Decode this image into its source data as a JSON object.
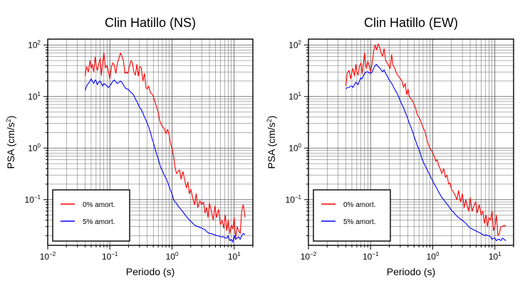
{
  "colors": {
    "undamped": "#ff0000",
    "damped": "#0000ff",
    "axis": "#000000",
    "grid": "#555555"
  },
  "chart_data": [
    {
      "type": "line",
      "title": "Clin Hatillo (NS)",
      "xlabel": "Periodo (s)",
      "ylabel_main": "PSA (cm/s",
      "ylabel_sup": "2",
      "ylabel_tail": ")",
      "x_scale": "log",
      "y_scale": "log",
      "xlim": [
        0.01,
        20
      ],
      "ylim": [
        0.013,
        130
      ],
      "grid": true,
      "legend_position": "bottom-left",
      "x_ticks": [
        {
          "value": 0.01,
          "base": "10",
          "exp": "−2"
        },
        {
          "value": 0.1,
          "base": "10",
          "exp": "−1"
        },
        {
          "value": 1,
          "base": "10",
          "exp": "0"
        },
        {
          "value": 10,
          "base": "10",
          "exp": "1"
        }
      ],
      "y_ticks": [
        {
          "value": 0.1,
          "base": "10",
          "exp": "−1"
        },
        {
          "value": 1,
          "base": "10",
          "exp": "0"
        },
        {
          "value": 10,
          "base": "10",
          "exp": "1"
        },
        {
          "value": 100,
          "base": "10",
          "exp": "2"
        }
      ],
      "series": [
        {
          "name": "0% amort.",
          "color": "#ff0000",
          "x": [
            0.04,
            0.042,
            0.045,
            0.048,
            0.05,
            0.052,
            0.055,
            0.058,
            0.06,
            0.063,
            0.066,
            0.07,
            0.073,
            0.076,
            0.08,
            0.085,
            0.09,
            0.095,
            0.1,
            0.106,
            0.112,
            0.118,
            0.125,
            0.132,
            0.14,
            0.148,
            0.156,
            0.165,
            0.175,
            0.185,
            0.195,
            0.206,
            0.218,
            0.23,
            0.243,
            0.257,
            0.272,
            0.287,
            0.303,
            0.32,
            0.34,
            0.36,
            0.38,
            0.4,
            0.42,
            0.45,
            0.48,
            0.5,
            0.53,
            0.56,
            0.6,
            0.63,
            0.66,
            0.7,
            0.75,
            0.8,
            0.85,
            0.9,
            0.95,
            1.0,
            1.06,
            1.12,
            1.18,
            1.25,
            1.32,
            1.4,
            1.5,
            1.6,
            1.7,
            1.8,
            1.9,
            2.0,
            2.15,
            2.3,
            2.45,
            2.6,
            2.8,
            3.0,
            3.2,
            3.4,
            3.6,
            3.8,
            4.0,
            4.3,
            4.6,
            4.9,
            5.2,
            5.6,
            6.0,
            6.4,
            6.8,
            7.2,
            7.6,
            8.0,
            8.5,
            9.0,
            9.5,
            10.0,
            10.6,
            11.2,
            11.8,
            12.5,
            13.2,
            14.0,
            15.0
          ],
          "y": [
            25,
            38,
            30,
            50,
            35,
            42,
            30,
            58,
            40,
            32,
            42,
            55,
            26,
            40,
            70,
            36,
            40,
            30,
            22,
            38,
            45,
            40,
            28,
            45,
            55,
            70,
            60,
            50,
            28,
            30,
            28,
            38,
            50,
            45,
            30,
            26,
            42,
            25,
            38,
            36,
            20,
            28,
            15,
            14,
            16,
            12,
            11,
            10,
            8,
            6.5,
            5,
            3.5,
            3.0,
            2.6,
            2.4,
            1.9,
            2.3,
            1.8,
            1.2,
            1.0,
            0.7,
            0.42,
            0.32,
            0.35,
            0.38,
            0.25,
            0.35,
            0.24,
            0.17,
            0.22,
            0.13,
            0.16,
            0.11,
            0.08,
            0.13,
            0.07,
            0.095,
            0.08,
            0.09,
            0.055,
            0.07,
            0.045,
            0.085,
            0.06,
            0.04,
            0.075,
            0.045,
            0.065,
            0.033,
            0.04,
            0.028,
            0.05,
            0.025,
            0.04,
            0.022,
            0.032,
            0.027,
            0.045,
            0.018,
            0.03,
            0.025,
            0.022,
            0.06,
            0.08,
            0.045
          ]
        },
        {
          "name": "5% amort.",
          "color": "#0000ff",
          "x": [
            0.04,
            0.042,
            0.045,
            0.048,
            0.05,
            0.052,
            0.055,
            0.058,
            0.06,
            0.063,
            0.066,
            0.07,
            0.073,
            0.076,
            0.08,
            0.085,
            0.09,
            0.095,
            0.1,
            0.106,
            0.112,
            0.118,
            0.125,
            0.132,
            0.14,
            0.148,
            0.156,
            0.165,
            0.175,
            0.185,
            0.195,
            0.206,
            0.218,
            0.23,
            0.243,
            0.257,
            0.272,
            0.287,
            0.303,
            0.32,
            0.34,
            0.36,
            0.38,
            0.4,
            0.42,
            0.45,
            0.48,
            0.5,
            0.53,
            0.56,
            0.6,
            0.63,
            0.66,
            0.7,
            0.75,
            0.8,
            0.85,
            0.9,
            0.95,
            1.0,
            1.06,
            1.12,
            1.18,
            1.25,
            1.32,
            1.4,
            1.5,
            1.6,
            1.7,
            1.8,
            1.9,
            2.0,
            2.15,
            2.3,
            2.45,
            2.6,
            2.8,
            3.0,
            3.2,
            3.4,
            3.6,
            3.8,
            4.0,
            4.3,
            4.6,
            4.9,
            5.2,
            5.6,
            6.0,
            6.4,
            6.8,
            7.2,
            7.6,
            8.0,
            8.5,
            9.0,
            9.5,
            10.0,
            10.6,
            11.2,
            11.8,
            12.5,
            13.2,
            14.0,
            15.0
          ],
          "y": [
            13,
            16,
            18,
            20,
            22,
            20,
            18,
            21,
            20,
            17,
            19,
            20,
            18,
            16,
            18,
            17,
            16,
            15,
            16,
            18,
            20,
            21,
            19,
            18,
            19,
            20,
            19,
            17,
            15,
            14,
            14,
            13,
            12,
            11.5,
            10.5,
            9,
            8,
            7,
            6,
            5.6,
            4.8,
            4.0,
            3.5,
            3.0,
            2.6,
            2.0,
            1.5,
            1.3,
            1.0,
            0.8,
            0.62,
            0.5,
            0.42,
            0.36,
            0.3,
            0.26,
            0.22,
            0.18,
            0.15,
            0.13,
            0.1,
            0.09,
            0.085,
            0.075,
            0.07,
            0.064,
            0.058,
            0.052,
            0.047,
            0.044,
            0.04,
            0.038,
            0.035,
            0.032,
            0.031,
            0.03,
            0.029,
            0.028,
            0.027,
            0.026,
            0.024,
            0.023,
            0.022,
            0.022,
            0.021,
            0.021,
            0.02,
            0.02,
            0.019,
            0.019,
            0.019,
            0.018,
            0.018,
            0.02,
            0.016,
            0.017,
            0.015,
            0.02,
            0.017,
            0.018,
            0.019,
            0.017,
            0.02,
            0.022,
            0.021
          ]
        }
      ]
    },
    {
      "type": "line",
      "title": "Clin Hatillo (EW)",
      "xlabel": "Periodo (s)",
      "ylabel_main": "PSA (cm/s",
      "ylabel_sup": "2",
      "ylabel_tail": ")",
      "x_scale": "log",
      "y_scale": "log",
      "xlim": [
        0.01,
        20
      ],
      "ylim": [
        0.013,
        130
      ],
      "grid": true,
      "legend_position": "bottom-left",
      "x_ticks": [
        {
          "value": 0.01,
          "base": "10",
          "exp": "−2"
        },
        {
          "value": 0.1,
          "base": "10",
          "exp": "−1"
        },
        {
          "value": 1,
          "base": "10",
          "exp": "0"
        },
        {
          "value": 10,
          "base": "10",
          "exp": "1"
        }
      ],
      "y_ticks": [
        {
          "value": 0.1,
          "base": "10",
          "exp": "−1"
        },
        {
          "value": 1,
          "base": "10",
          "exp": "0"
        },
        {
          "value": 10,
          "base": "10",
          "exp": "1"
        },
        {
          "value": 100,
          "base": "10",
          "exp": "2"
        }
      ],
      "series": [
        {
          "name": "0% amort.",
          "color": "#ff0000",
          "x": [
            0.04,
            0.042,
            0.045,
            0.048,
            0.05,
            0.052,
            0.055,
            0.058,
            0.06,
            0.063,
            0.066,
            0.07,
            0.073,
            0.076,
            0.08,
            0.085,
            0.09,
            0.095,
            0.1,
            0.106,
            0.112,
            0.118,
            0.125,
            0.132,
            0.14,
            0.148,
            0.156,
            0.165,
            0.175,
            0.185,
            0.195,
            0.206,
            0.218,
            0.23,
            0.243,
            0.257,
            0.272,
            0.287,
            0.303,
            0.32,
            0.34,
            0.36,
            0.38,
            0.4,
            0.42,
            0.45,
            0.48,
            0.5,
            0.53,
            0.56,
            0.6,
            0.63,
            0.66,
            0.7,
            0.75,
            0.8,
            0.85,
            0.9,
            0.95,
            1.0,
            1.06,
            1.12,
            1.18,
            1.25,
            1.32,
            1.4,
            1.5,
            1.6,
            1.7,
            1.8,
            1.9,
            2.0,
            2.15,
            2.3,
            2.45,
            2.6,
            2.8,
            3.0,
            3.2,
            3.4,
            3.6,
            3.8,
            4.0,
            4.3,
            4.6,
            4.9,
            5.2,
            5.6,
            6.0,
            6.4,
            6.8,
            7.2,
            7.6,
            8.0,
            8.5,
            9.0,
            9.5,
            10.0,
            10.6,
            11.2,
            11.8,
            12.5,
            13.2,
            14.0,
            15.0
          ],
          "y": [
            16,
            28,
            32,
            22,
            30,
            35,
            25,
            42,
            30,
            26,
            38,
            45,
            28,
            40,
            70,
            35,
            48,
            40,
            30,
            45,
            75,
            100,
            80,
            105,
            90,
            70,
            60,
            85,
            50,
            45,
            40,
            35,
            65,
            40,
            36,
            30,
            26,
            24,
            22,
            20,
            15,
            18,
            11,
            14,
            10,
            9,
            8,
            7,
            6,
            4.5,
            4.0,
            3.5,
            3.0,
            2.5,
            2.1,
            1.5,
            1.2,
            1.0,
            0.9,
            0.8,
            0.7,
            0.55,
            0.6,
            0.45,
            0.4,
            0.32,
            0.4,
            0.27,
            0.3,
            0.2,
            0.21,
            0.16,
            0.14,
            0.12,
            0.1,
            0.15,
            0.09,
            0.13,
            0.07,
            0.1,
            0.075,
            0.06,
            0.11,
            0.06,
            0.075,
            0.09,
            0.055,
            0.08,
            0.05,
            0.06,
            0.035,
            0.05,
            0.03,
            0.045,
            0.04,
            0.06,
            0.025,
            0.03,
            0.05,
            0.02,
            0.022,
            0.03,
            0.03,
            0.032,
            0.03
          ]
        },
        {
          "name": "5% amort.",
          "color": "#0000ff",
          "x": [
            0.04,
            0.042,
            0.045,
            0.048,
            0.05,
            0.052,
            0.055,
            0.058,
            0.06,
            0.063,
            0.066,
            0.07,
            0.073,
            0.076,
            0.08,
            0.085,
            0.09,
            0.095,
            0.1,
            0.106,
            0.112,
            0.118,
            0.125,
            0.132,
            0.14,
            0.148,
            0.156,
            0.165,
            0.175,
            0.185,
            0.195,
            0.206,
            0.218,
            0.23,
            0.243,
            0.257,
            0.272,
            0.287,
            0.303,
            0.32,
            0.34,
            0.36,
            0.38,
            0.4,
            0.42,
            0.45,
            0.48,
            0.5,
            0.53,
            0.56,
            0.6,
            0.63,
            0.66,
            0.7,
            0.75,
            0.8,
            0.85,
            0.9,
            0.95,
            1.0,
            1.06,
            1.12,
            1.18,
            1.25,
            1.32,
            1.4,
            1.5,
            1.6,
            1.7,
            1.8,
            1.9,
            2.0,
            2.15,
            2.3,
            2.45,
            2.6,
            2.8,
            3.0,
            3.2,
            3.4,
            3.6,
            3.8,
            4.0,
            4.3,
            4.6,
            4.9,
            5.2,
            5.6,
            6.0,
            6.4,
            6.8,
            7.2,
            7.6,
            8.0,
            8.5,
            9.0,
            9.5,
            10.0,
            10.6,
            11.2,
            11.8,
            12.5,
            13.2,
            14.0,
            15.0
          ],
          "y": [
            14,
            15,
            15,
            16,
            16,
            15,
            17,
            19,
            18,
            17,
            20,
            23,
            22,
            25,
            28,
            30,
            30,
            29,
            28,
            30,
            35,
            40,
            42,
            38,
            36,
            33,
            30,
            33,
            28,
            25,
            22,
            20,
            18,
            16,
            14,
            12.5,
            11,
            9.5,
            8,
            7,
            6,
            5,
            4.3,
            3.6,
            3.0,
            2.5,
            2.0,
            1.7,
            1.4,
            1.15,
            0.95,
            0.8,
            0.66,
            0.55,
            0.46,
            0.4,
            0.34,
            0.3,
            0.26,
            0.23,
            0.2,
            0.18,
            0.16,
            0.14,
            0.125,
            0.11,
            0.1,
            0.09,
            0.082,
            0.075,
            0.068,
            0.062,
            0.058,
            0.052,
            0.048,
            0.045,
            0.042,
            0.04,
            0.037,
            0.035,
            0.032,
            0.03,
            0.028,
            0.027,
            0.026,
            0.025,
            0.024,
            0.023,
            0.022,
            0.021,
            0.02,
            0.021,
            0.02,
            0.02,
            0.019,
            0.017,
            0.018,
            0.018,
            0.016,
            0.017,
            0.017,
            0.016,
            0.018,
            0.017,
            0.016
          ]
        }
      ]
    }
  ]
}
